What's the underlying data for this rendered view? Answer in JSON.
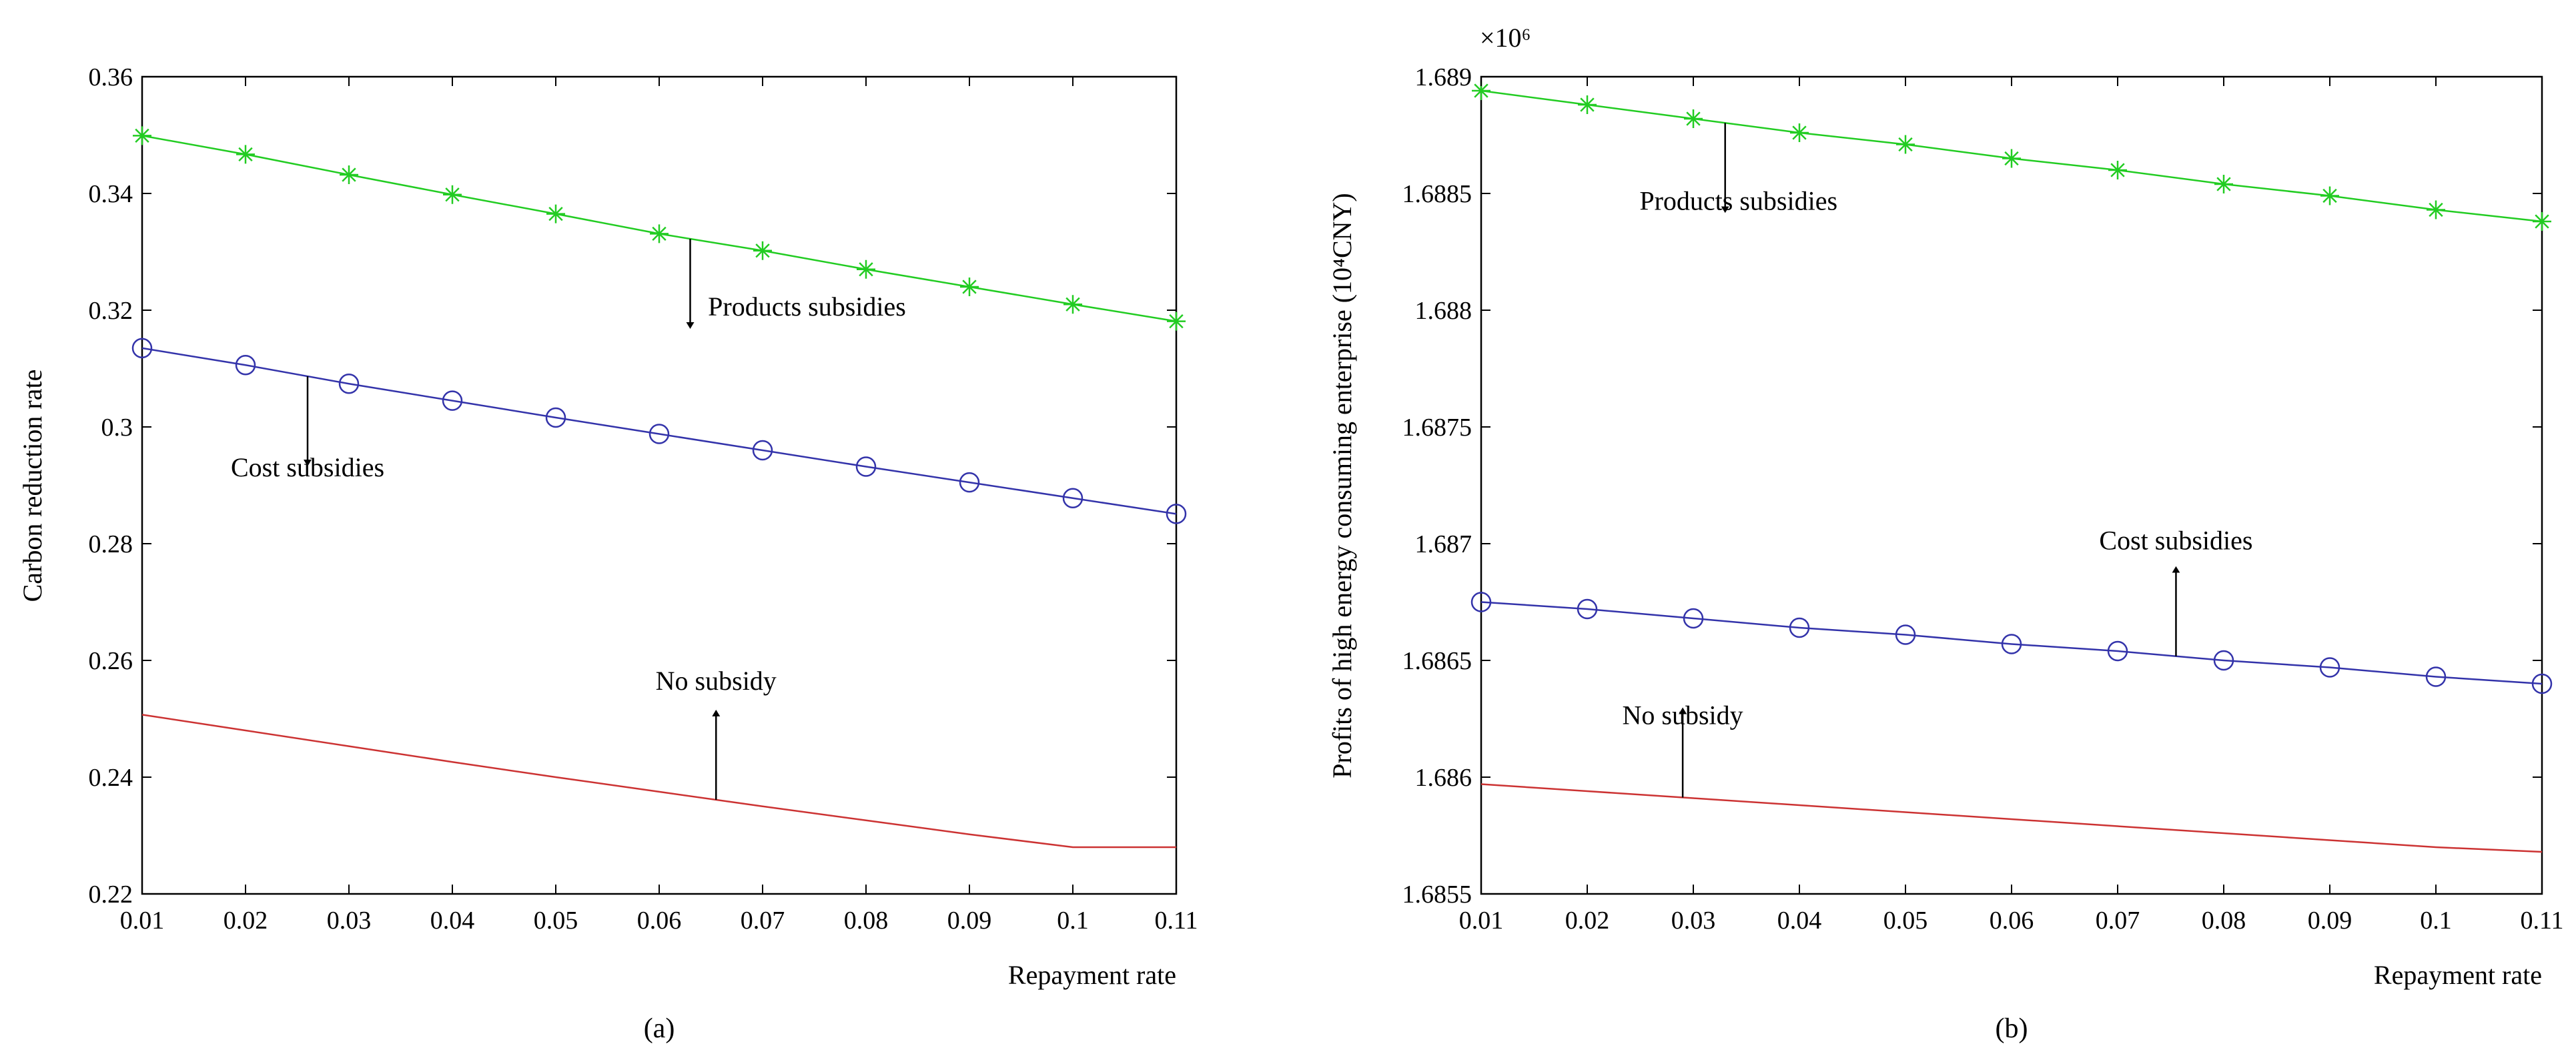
{
  "chart_data": [
    {
      "type": "line",
      "caption": "(a)",
      "title": "",
      "xlabel": "Repayment rate",
      "ylabel": "Carbon reduction rate",
      "xlim": [
        0.01,
        0.11
      ],
      "ylim": [
        0.22,
        0.36
      ],
      "xticks": [
        "0.01",
        "0.02",
        "0.03",
        "0.04",
        "0.05",
        "0.06",
        "0.07",
        "0.08",
        "0.09",
        "0.1",
        "0.11"
      ],
      "yticks": [
        "0.22",
        "0.24",
        "0.26",
        "0.28",
        "0.3",
        "0.32",
        "0.34",
        "0.36"
      ],
      "x": [
        0.01,
        0.02,
        0.03,
        0.04,
        0.05,
        0.06,
        0.07,
        0.08,
        0.09,
        0.1,
        0.11
      ],
      "series": [
        {
          "name": "Products subsidies",
          "color": "#22cc22",
          "marker": "star",
          "values": [
            0.3499,
            0.3467,
            0.3432,
            0.3398,
            0.3365,
            0.3331,
            0.3302,
            0.327,
            0.324,
            0.321,
            0.3181
          ]
        },
        {
          "name": "Cost subsidies",
          "color": "#3333aa",
          "marker": "circle",
          "values": [
            0.3135,
            0.3106,
            0.3074,
            0.3045,
            0.3016,
            0.2988,
            0.296,
            0.2932,
            0.2905,
            0.2878,
            0.2851
          ]
        },
        {
          "name": "No subsidy",
          "color": "#cc3333",
          "marker": "none",
          "values": [
            0.2507,
            0.248,
            0.2453,
            0.2426,
            0.24,
            0.2375,
            0.235,
            0.2326,
            0.2302,
            0.228,
            0.228
          ]
        }
      ],
      "annotations": [
        {
          "text": "Products subsidies",
          "series": 0,
          "x": 0.063,
          "dir": "down"
        },
        {
          "text": "Cost subsidies",
          "series": 1,
          "x": 0.026,
          "dir": "down"
        },
        {
          "text": "No subsidy",
          "series": 2,
          "x": 0.0655,
          "dir": "up"
        }
      ]
    },
    {
      "type": "line",
      "caption": "(b)",
      "title": "",
      "xlabel": "Repayment rate",
      "ylabel": "Profits of high energy consuming enterprise (10⁴CNY)",
      "yscale_label": "×10⁶",
      "xlim": [
        0.01,
        0.11
      ],
      "ylim": [
        1.6855,
        1.689
      ],
      "xticks": [
        "0.01",
        "0.02",
        "0.03",
        "0.04",
        "0.05",
        "0.06",
        "0.07",
        "0.08",
        "0.09",
        "0.1",
        "0.11"
      ],
      "yticks": [
        "1.6855",
        "1.686",
        "1.6865",
        "1.687",
        "1.6875",
        "1.688",
        "1.6885",
        "1.689"
      ],
      "x": [
        0.01,
        0.02,
        0.03,
        0.04,
        0.05,
        0.06,
        0.07,
        0.08,
        0.09,
        0.1,
        0.11
      ],
      "series": [
        {
          "name": "Products subsidies",
          "color": "#22cc22",
          "marker": "star",
          "values": [
            1.68894,
            1.68888,
            1.68882,
            1.68876,
            1.68871,
            1.68865,
            1.6886,
            1.68854,
            1.68849,
            1.68843,
            1.68838
          ]
        },
        {
          "name": "Cost subsidies",
          "color": "#3333aa",
          "marker": "circle",
          "values": [
            1.68675,
            1.68672,
            1.68668,
            1.68664,
            1.68661,
            1.68657,
            1.68654,
            1.6865,
            1.68647,
            1.68643,
            1.6864
          ]
        },
        {
          "name": "No subsidy",
          "color": "#cc3333",
          "marker": "none",
          "values": [
            1.68597,
            1.68594,
            1.68591,
            1.68588,
            1.68585,
            1.68582,
            1.68579,
            1.68576,
            1.68573,
            1.6857,
            1.68568
          ]
        }
      ],
      "annotations": [
        {
          "text": "Products subsidies",
          "series": 0,
          "x": 0.033,
          "dir": "down"
        },
        {
          "text": "Cost subsidies",
          "series": 1,
          "x": 0.0755,
          "dir": "up"
        },
        {
          "text": "No subsidy",
          "series": 2,
          "x": 0.029,
          "dir": "up"
        }
      ]
    }
  ]
}
